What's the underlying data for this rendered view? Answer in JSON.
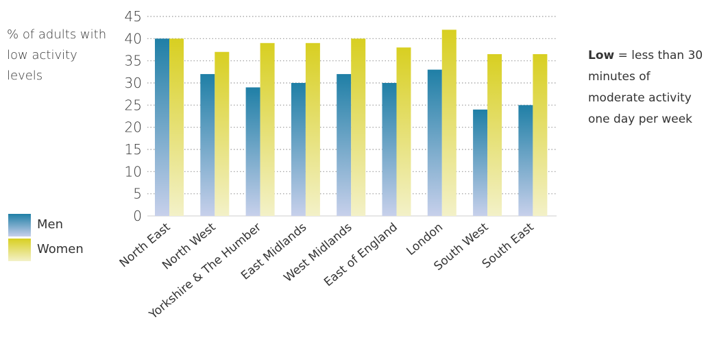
{
  "y_axis_label": "% of adults with low activity levels",
  "note": {
    "bold": "Low",
    "rest": "= less than 30 minutes of moderate activity one day per week"
  },
  "legend": [
    {
      "label": "Men",
      "color": "#1f7fa6"
    },
    {
      "label": "Women",
      "color": "#d8cf21"
    }
  ],
  "colors": {
    "men_top": "#1f7fa6",
    "men_bottom": "#c7d0eb",
    "women_top": "#d8cf21",
    "women_bottom": "#f3f1c8",
    "grid": "#999999",
    "axis_text": "#333333"
  },
  "chart_data": {
    "type": "bar",
    "categories": [
      "North East",
      "North West",
      "Yorkshire & The Humber",
      "East Midlands",
      "West Midlands",
      "East of England",
      "London",
      "South West",
      "South East"
    ],
    "series": [
      {
        "name": "Men",
        "values": [
          40,
          32,
          29,
          30,
          32,
          30,
          33,
          24,
          25
        ]
      },
      {
        "name": "Women",
        "values": [
          40,
          37,
          39,
          39,
          40,
          38,
          42,
          36.5,
          36.5
        ]
      }
    ],
    "ylim": [
      0,
      45
    ],
    "yticks": [
      0,
      5,
      10,
      15,
      20,
      25,
      30,
      35,
      40,
      45
    ],
    "grid": true
  }
}
